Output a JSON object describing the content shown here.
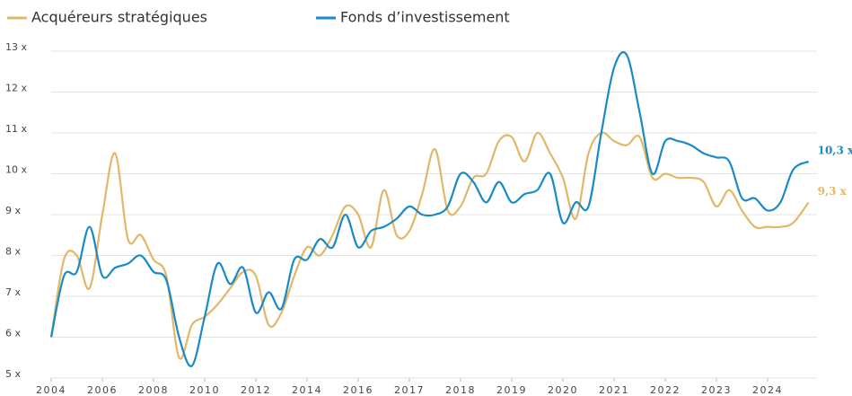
{
  "chart_data": {
    "type": "line",
    "x": [
      0,
      0.25,
      0.5,
      0.75,
      1,
      1.25,
      1.5,
      1.75,
      2,
      2.25,
      2.5,
      2.75,
      3,
      3.25,
      3.5,
      3.75,
      4,
      4.25,
      4.5,
      4.75,
      5,
      5.25,
      5.5,
      5.75,
      6,
      6.25,
      6.5,
      6.75,
      7,
      7.25,
      7.5,
      7.75,
      8,
      8.25,
      8.5,
      8.75,
      9,
      9.25,
      9.5,
      9.75,
      10,
      10.25,
      10.5,
      10.75,
      11,
      11.25,
      11.5,
      11.75,
      12,
      12.25,
      12.5,
      12.75,
      13,
      13.25,
      13.5,
      13.75,
      14,
      14.25,
      14.5,
      14.8
    ],
    "xlim": [
      0,
      14.8
    ],
    "xticks": [
      {
        "value": 0,
        "label": "2004"
      },
      {
        "value": 1,
        "label": "2006"
      },
      {
        "value": 2,
        "label": "2008"
      },
      {
        "value": 3,
        "label": "2010"
      },
      {
        "value": 4,
        "label": "2012"
      },
      {
        "value": 5,
        "label": "2014"
      },
      {
        "value": 6,
        "label": "2016"
      },
      {
        "value": 7,
        "label": "2017"
      },
      {
        "value": 8,
        "label": "2018"
      },
      {
        "value": 9,
        "label": "2019"
      },
      {
        "value": 10,
        "label": "2020"
      },
      {
        "value": 11,
        "label": "2021"
      },
      {
        "value": 12,
        "label": "2022"
      },
      {
        "value": 13,
        "label": "2023"
      },
      {
        "value": 14,
        "label": "2024"
      }
    ],
    "ylim": [
      5,
      13
    ],
    "yticks": [
      {
        "value": 5,
        "label": "5 x"
      },
      {
        "value": 6,
        "label": "6 x"
      },
      {
        "value": 7,
        "label": "7 x"
      },
      {
        "value": 8,
        "label": "8 x"
      },
      {
        "value": 9,
        "label": "9 x"
      },
      {
        "value": 10,
        "label": "10 x"
      },
      {
        "value": 11,
        "label": "11 x"
      },
      {
        "value": 12,
        "label": "12 x"
      },
      {
        "value": 13,
        "label": "13 x"
      }
    ],
    "grid": true,
    "series": [
      {
        "name": "Acquéreurs stratégiques",
        "color": "#e0b868",
        "values": [
          6.0,
          7.9,
          8.0,
          7.2,
          9.0,
          10.5,
          8.4,
          8.5,
          7.9,
          7.5,
          5.5,
          6.3,
          6.5,
          6.8,
          7.2,
          7.6,
          7.5,
          6.3,
          6.6,
          7.5,
          8.2,
          8.0,
          8.5,
          9.2,
          9.0,
          8.2,
          9.6,
          8.5,
          8.6,
          9.5,
          10.6,
          9.1,
          9.2,
          9.9,
          10.0,
          10.8,
          10.9,
          10.3,
          11.0,
          10.5,
          9.9,
          8.9,
          10.5,
          11.0,
          10.8,
          10.7,
          10.9,
          9.9,
          10.0,
          9.9,
          9.9,
          9.8,
          9.2,
          9.6,
          9.1,
          8.7,
          8.7,
          8.7,
          8.8,
          9.3
        ],
        "value_labels": [
          null,
          null,
          null,
          null,
          null,
          null,
          null,
          null,
          null,
          null,
          null,
          null,
          null,
          null,
          null,
          null,
          null,
          null,
          null,
          null,
          null,
          null,
          null,
          null,
          null,
          null,
          null,
          null,
          null,
          null,
          null,
          null,
          null,
          null,
          null,
          null,
          null,
          null,
          null,
          null,
          null,
          null,
          null,
          null,
          null,
          null,
          null,
          null,
          null,
          null,
          null,
          null,
          null,
          null,
          null,
          null,
          null,
          null,
          null,
          "9,3 x"
        ]
      },
      {
        "name": "Fonds d’investissement",
        "color": "#1a8ac6",
        "values": [
          6.0,
          7.5,
          7.6,
          8.7,
          7.5,
          7.7,
          7.8,
          8.0,
          7.6,
          7.4,
          6.0,
          5.3,
          6.5,
          7.8,
          7.3,
          7.7,
          6.6,
          7.1,
          6.7,
          7.9,
          7.9,
          8.4,
          8.2,
          9.0,
          8.2,
          8.6,
          8.7,
          8.9,
          9.2,
          9.0,
          9.0,
          9.2,
          10.0,
          9.8,
          9.3,
          9.8,
          9.3,
          9.5,
          9.6,
          10.0,
          8.8,
          9.3,
          9.2,
          11.0,
          12.6,
          12.9,
          11.5,
          10.0,
          10.8,
          10.8,
          10.7,
          10.5,
          10.4,
          10.3,
          9.4,
          9.4,
          9.1,
          9.3,
          10.1,
          10.3
        ],
        "value_labels": [
          null,
          null,
          null,
          null,
          null,
          null,
          null,
          null,
          null,
          null,
          null,
          null,
          null,
          null,
          null,
          null,
          null,
          null,
          null,
          null,
          null,
          null,
          null,
          null,
          null,
          null,
          null,
          null,
          null,
          null,
          null,
          null,
          null,
          null,
          null,
          null,
          null,
          null,
          null,
          null,
          null,
          null,
          null,
          null,
          null,
          null,
          null,
          null,
          null,
          null,
          null,
          null,
          null,
          null,
          null,
          null,
          null,
          null,
          null,
          "10,3 x"
        ]
      }
    ]
  }
}
